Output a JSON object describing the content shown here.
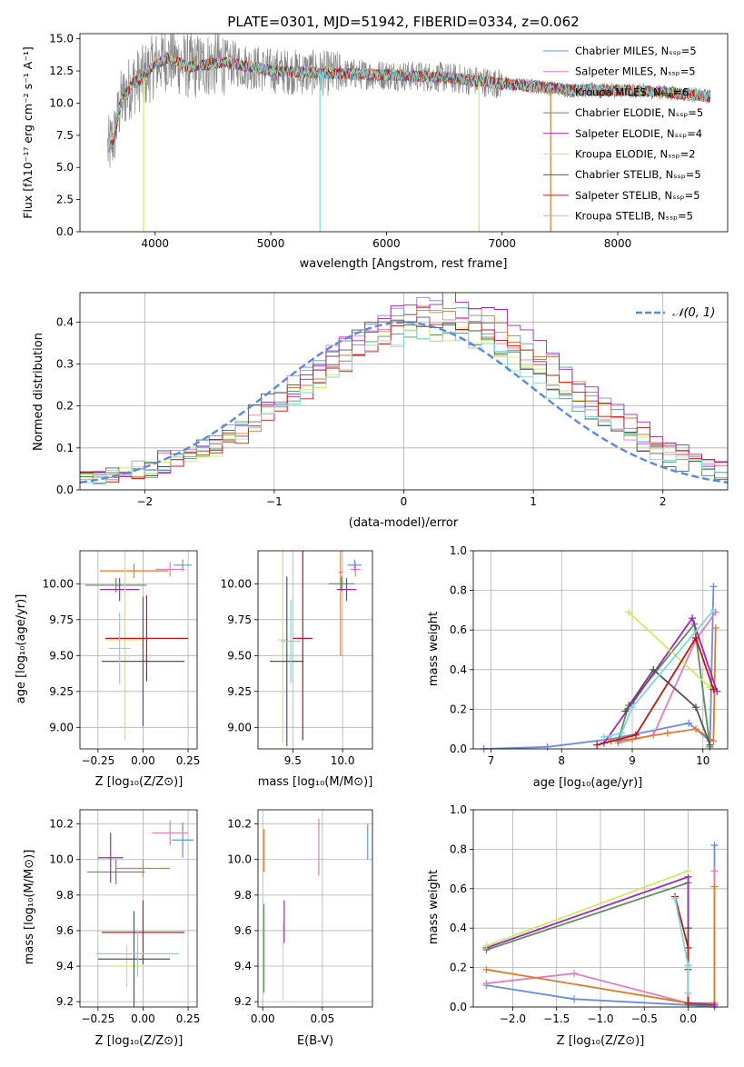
{
  "colors": {
    "chabrier_miles": "#6a8fd8",
    "salpeter_miles": "#e07cc0",
    "kroupa_miles": "#e07a2c",
    "chabrier_elodie": "#5f8f5f",
    "salpeter_elodie": "#9a28b8",
    "kroupa_elodie": "#cfe864",
    "chabrier_stelib": "#555555",
    "salpeter_stelib": "#c01818",
    "kroupa_stelib": "#7fd8d8",
    "data": "#888888",
    "gaussian": "#5b8ad8"
  },
  "chart_data": [
    {
      "id": "spectrum",
      "type": "line",
      "title": "PLATE=0301, MJD=51942, FIBERID=0334, z=0.062",
      "xlabel": "wavelength [Angstrom, rest frame]",
      "ylabel": "Flux [fλ10⁻¹⁷ erg cm⁻² s⁻¹ A⁻¹]",
      "xlim": [
        3350,
        8950
      ],
      "ylim": [
        0,
        15.4
      ],
      "xticks": [
        "4000",
        "5000",
        "6000",
        "7000",
        "8000"
      ],
      "yticks": [
        "0.0",
        "2.5",
        "5.0",
        "7.5",
        "10.0",
        "12.5",
        "15.0"
      ],
      "legend": "right",
      "legend_entries": [
        "Chabrier MILES, Nₛₛₚ=5",
        "Salpeter MILES, Nₛₛₚ=5",
        "Kroupa MILES, Nₛₛₚ=6",
        "Chabrier ELODIE, Nₛₛₚ=5",
        "Salpeter ELODIE, Nₛₛₚ=4",
        "Kroupa ELODIE, Nₛₛₚ=2",
        "Chabrier STELIB, Nₛₛₚ=5",
        "Salpeter STELIB, Nₛₛₚ=5",
        "Kroupa STELIB, Nₛₛₚ=5"
      ],
      "continuum": {
        "x": [
          3600,
          3650,
          3700,
          3800,
          3900,
          4000,
          4100,
          4300,
          4600,
          5000,
          5500,
          6000,
          6500,
          7000,
          7300,
          7600,
          8000,
          8300,
          8600,
          8800
        ],
        "y": [
          6.5,
          7.5,
          10.0,
          11.5,
          12.0,
          13.0,
          13.5,
          12.8,
          13.2,
          12.5,
          12.3,
          12.2,
          12.0,
          11.5,
          11.3,
          11.0,
          11.0,
          10.9,
          10.7,
          10.5
        ]
      }
    },
    {
      "id": "residuals",
      "type": "line",
      "xlabel": "(data-model)/error",
      "ylabel": "Normed distribution",
      "xlim": [
        -2.5,
        2.5
      ],
      "ylim": [
        0,
        0.47
      ],
      "xticks": [
        "−2",
        "−1",
        "0",
        "1",
        "2"
      ],
      "yticks": [
        "0.0",
        "0.1",
        "0.2",
        "0.3",
        "0.4"
      ],
      "legend": "top-right",
      "gaussian_label": "𝒩(0, 1)",
      "hist_peak": [
        0.43,
        0.4,
        0.41,
        0.37,
        0.44,
        0.36,
        0.39,
        0.38,
        0.35
      ],
      "hist_center": [
        0.25,
        0.15,
        0.3,
        0.2,
        0.3,
        0.25,
        0.1,
        0.3,
        0.2
      ]
    },
    {
      "id": "age_vs_Z",
      "type": "scatter",
      "xlabel": "Z [log₁₀(Z/Z⊙)]",
      "ylabel": "age  [log₁₀(age/yr)]",
      "xlim": [
        -0.35,
        0.3
      ],
      "ylim": [
        8.85,
        10.23
      ],
      "xticks": [
        "−0.25",
        "0.00",
        "0.25"
      ],
      "yticks": [
        "9.00",
        "9.25",
        "9.50",
        "9.75",
        "10.00"
      ],
      "points": [
        {
          "x": 0.22,
          "y": 10.13,
          "xe": 0.05,
          "ye": 0.04
        },
        {
          "x": 0.15,
          "y": 10.1,
          "xe": 0.08,
          "ye": 0.05
        },
        {
          "x": -0.05,
          "y": 10.09,
          "xe": 0.19,
          "ye": 0.05
        },
        {
          "x": -0.15,
          "y": 9.99,
          "xe": 0.17,
          "ye": 0.05
        },
        {
          "x": -0.13,
          "y": 9.96,
          "xe": 0.11,
          "ye": 0.08
        },
        {
          "x": -0.1,
          "y": 9.61,
          "xe": 0.11,
          "ye": 0.7
        },
        {
          "x": 0.0,
          "y": 9.46,
          "xe": 0.23,
          "ye": 0.45
        },
        {
          "x": 0.02,
          "y": 9.62,
          "xe": 0.23,
          "ye": 0.3
        },
        {
          "x": -0.13,
          "y": 9.55,
          "xe": 0.06,
          "ye": 0.25
        }
      ]
    },
    {
      "id": "age_vs_mass",
      "type": "scatter",
      "xlabel": "mass [log₁₀(M/M⊙)]",
      "ylabel": "",
      "xlim": [
        9.15,
        10.3
      ],
      "ylim": [
        8.85,
        10.23
      ],
      "xticks": [
        "9.5",
        "10.0"
      ],
      "yticks": [
        "9.00",
        "9.25",
        "9.50",
        "9.75",
        "10.00"
      ],
      "points": [
        {
          "x": 10.12,
          "y": 10.13,
          "xe": 0.07,
          "ye": 0.04
        },
        {
          "x": 10.13,
          "y": 10.1,
          "xe": 0.05,
          "ye": 0.05
        },
        {
          "x": 9.98,
          "y": 10.08,
          "xe": 0.02,
          "ye": 0.58
        },
        {
          "x": 9.99,
          "y": 10.0,
          "xe": 0.13,
          "ye": 0.05
        },
        {
          "x": 10.04,
          "y": 9.96,
          "xe": 0.1,
          "ye": 0.08
        },
        {
          "x": 9.4,
          "y": 9.61,
          "xe": 0.05,
          "ye": 0.72
        },
        {
          "x": 9.44,
          "y": 9.46,
          "xe": 0.17,
          "ye": 0.59
        },
        {
          "x": 9.6,
          "y": 9.62,
          "xe": 0.1,
          "ye": 0.71
        },
        {
          "x": 9.48,
          "y": 9.6,
          "xe": 0.1,
          "ye": 0.29
        }
      ]
    },
    {
      "id": "weights_vs_age",
      "type": "line",
      "xlabel": "age  [log₁₀(age/yr)]",
      "ylabel": "mass weight",
      "xlim": [
        6.75,
        10.35
      ],
      "ylim": [
        0,
        1.0
      ],
      "xticks": [
        "7",
        "8",
        "9",
        "10"
      ],
      "yticks": [
        "0.0",
        "0.2",
        "0.4",
        "0.6",
        "0.8",
        "1.0"
      ],
      "series": [
        {
          "x": [
            6.9,
            7.8,
            8.7,
            9.8,
            10.1,
            10.15
          ],
          "y": [
            0.0,
            0.01,
            0.05,
            0.13,
            0.04,
            0.82
          ]
        },
        {
          "x": [
            8.8,
            9.3,
            9.9,
            10.18
          ],
          "y": [
            0.03,
            0.07,
            0.55,
            0.69
          ]
        },
        {
          "x": [
            8.7,
            9.0,
            9.5,
            9.9,
            10.15,
            10.18
          ],
          "y": [
            0.04,
            0.05,
            0.08,
            0.1,
            0.04,
            0.61
          ]
        },
        {
          "x": [
            8.8,
            8.95,
            9.88,
            10.1
          ],
          "y": [
            0.04,
            0.22,
            0.63,
            0.01
          ]
        },
        {
          "x": [
            8.6,
            9.0,
            9.85,
            10.2
          ],
          "y": [
            0.03,
            0.23,
            0.66,
            0.29
          ]
        },
        {
          "x": [
            8.95,
            10.1
          ],
          "y": [
            0.69,
            0.31
          ]
        },
        {
          "x": [
            8.9,
            9.3,
            9.9,
            10.1
          ],
          "y": [
            0.19,
            0.4,
            0.21,
            0.02
          ]
        },
        {
          "x": [
            8.5,
            9.05,
            9.9,
            10.15
          ],
          "y": [
            0.02,
            0.07,
            0.56,
            0.3
          ]
        },
        {
          "x": [
            8.6,
            8.85,
            9.0,
            10.15
          ],
          "y": [
            0.06,
            0.08,
            0.21,
            0.7
          ]
        }
      ]
    },
    {
      "id": "mass_vs_Z",
      "type": "scatter",
      "xlabel": "Z [log₁₀(Z/Z⊙)]",
      "ylabel": "mass [log₁₀(M/M⊙)]",
      "xlim": [
        -0.35,
        0.3
      ],
      "ylim": [
        9.17,
        10.28
      ],
      "xticks": [
        "−0.25",
        "0.00",
        "0.25"
      ],
      "yticks": [
        "9.2",
        "9.4",
        "9.6",
        "9.8",
        "10.0",
        "10.2"
      ],
      "points": [
        {
          "x": 0.22,
          "y": 10.11,
          "xe": 0.06,
          "ye": 0.1
        },
        {
          "x": 0.15,
          "y": 10.15,
          "xe": 0.1,
          "ye": 0.07
        },
        {
          "x": 0.0,
          "y": 9.95,
          "xe": 0.15,
          "ye": 0.05
        },
        {
          "x": -0.15,
          "y": 9.93,
          "xe": 0.16,
          "ye": 0.07
        },
        {
          "x": -0.18,
          "y": 10.01,
          "xe": 0.07,
          "ye": 0.14
        },
        {
          "x": -0.09,
          "y": 9.4,
          "xe": 0.1,
          "ye": 0.12
        },
        {
          "x": -0.05,
          "y": 9.44,
          "xe": 0.2,
          "ye": 0.27
        },
        {
          "x": 0.0,
          "y": 9.59,
          "xe": 0.23,
          "ye": 0.18
        },
        {
          "x": -0.03,
          "y": 9.47,
          "xe": 0.23,
          "ye": 0.13
        }
      ]
    },
    {
      "id": "mass_vs_ebv",
      "type": "scatter",
      "xlabel": "E(B-V)",
      "ylabel": "",
      "xlim": [
        -0.004,
        0.092
      ],
      "ylim": [
        9.17,
        10.28
      ],
      "xticks": [
        "0.00",
        "0.05"
      ],
      "yticks": [
        "9.2",
        "9.4",
        "9.6",
        "9.8",
        "10.0",
        "10.2"
      ],
      "points": [
        {
          "x": 0.088,
          "y": 10.1,
          "xe": 0.0,
          "ye": 0.1
        },
        {
          "x": 0.047,
          "y": 10.07,
          "xe": 0.0,
          "ye": 0.16
        },
        {
          "x": 0.001,
          "y": 10.05,
          "xe": 0.0,
          "ye": 0.12
        },
        {
          "x": 0.001,
          "y": 9.5,
          "xe": 0.0,
          "ye": 0.25
        },
        {
          "x": 0.018,
          "y": 9.65,
          "xe": 0.0,
          "ye": 0.12
        },
        {
          "x": 0.017,
          "y": 9.43,
          "xe": 0.0,
          "ye": 0.22
        }
      ]
    },
    {
      "id": "weights_vs_Z",
      "type": "line",
      "xlabel": "Z [log₁₀(Z/Z⊙)]",
      "ylabel": "mass weight",
      "xlim": [
        -2.45,
        0.45
      ],
      "ylim": [
        0,
        1.0
      ],
      "xticks": [
        "−2.0",
        "−1.5",
        "−1.0",
        "−0.5",
        "0.0"
      ],
      "yticks": [
        "0.0",
        "0.2",
        "0.4",
        "0.6",
        "0.8",
        "1.0"
      ],
      "series": [
        {
          "x": [
            -2.3,
            -1.3,
            0.0,
            0.3,
            0.3
          ],
          "y": [
            0.11,
            0.04,
            0.01,
            0.0,
            0.82
          ]
        },
        {
          "x": [
            -2.3,
            -1.3,
            0.0,
            0.3,
            0.3
          ],
          "y": [
            0.12,
            0.17,
            0.02,
            0.0,
            0.69
          ]
        },
        {
          "x": [
            -2.3,
            0.0,
            0.3,
            0.3
          ],
          "y": [
            0.19,
            0.02,
            0.02,
            0.61
          ]
        },
        {
          "x": [
            -2.3,
            0.0,
            0.0,
            0.3
          ],
          "y": [
            0.29,
            0.63,
            0.01,
            0.01
          ]
        },
        {
          "x": [
            -2.3,
            0.0,
            0.0,
            0.3
          ],
          "y": [
            0.3,
            0.66,
            0.02,
            0.01
          ]
        },
        {
          "x": [
            -2.3,
            0.0
          ],
          "y": [
            0.31,
            0.69
          ]
        },
        {
          "x": [
            0.0,
            0.0,
            0.0,
            0.0
          ],
          "y": [
            0.02,
            0.19,
            0.4,
            0.21
          ]
        },
        {
          "x": [
            -0.15,
            0.0,
            0.0
          ],
          "y": [
            0.56,
            0.3,
            0.02
          ]
        },
        {
          "x": [
            -0.15,
            0.0,
            0.0
          ],
          "y": [
            0.55,
            0.21,
            0.07
          ]
        }
      ]
    }
  ]
}
